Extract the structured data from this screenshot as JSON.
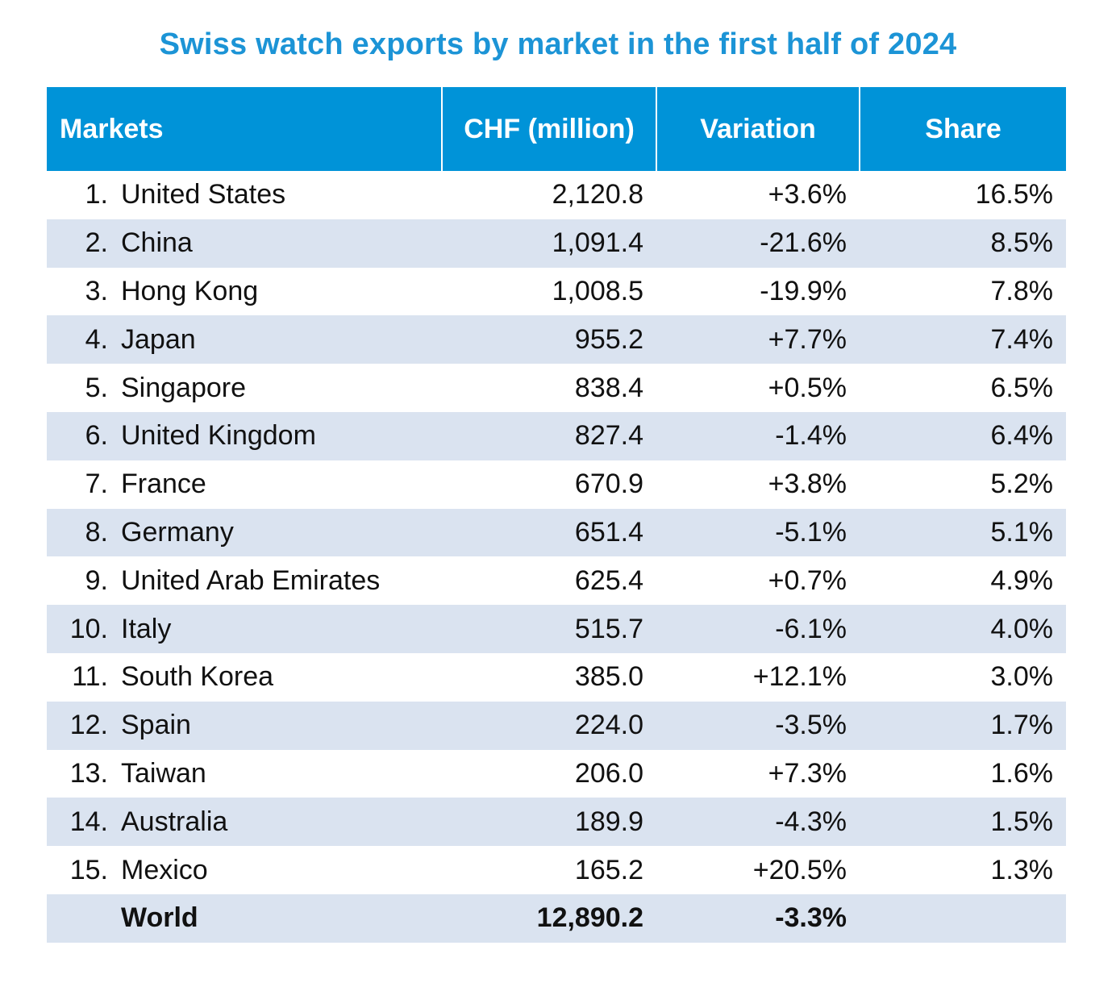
{
  "chart_data": {
    "type": "table",
    "title": "Swiss watch exports by market in the first half of 2024",
    "headers": {
      "markets": "Markets",
      "chf": "CHF (million)",
      "variation": "Variation",
      "share": "Share"
    },
    "rows": [
      {
        "rank": "1.",
        "market": "United States",
        "chf": "2,120.8",
        "variation": "+3.6%",
        "share": "16.5%"
      },
      {
        "rank": "2.",
        "market": "China",
        "chf": "1,091.4",
        "variation": "-21.6%",
        "share": "8.5%"
      },
      {
        "rank": "3.",
        "market": "Hong Kong",
        "chf": "1,008.5",
        "variation": "-19.9%",
        "share": "7.8%"
      },
      {
        "rank": "4.",
        "market": "Japan",
        "chf": "955.2",
        "variation": "+7.7%",
        "share": "7.4%"
      },
      {
        "rank": "5.",
        "market": "Singapore",
        "chf": "838.4",
        "variation": "+0.5%",
        "share": "6.5%"
      },
      {
        "rank": "6.",
        "market": "United Kingdom",
        "chf": "827.4",
        "variation": "-1.4%",
        "share": "6.4%"
      },
      {
        "rank": "7.",
        "market": "France",
        "chf": "670.9",
        "variation": "+3.8%",
        "share": "5.2%"
      },
      {
        "rank": "8.",
        "market": "Germany",
        "chf": "651.4",
        "variation": "-5.1%",
        "share": "5.1%"
      },
      {
        "rank": "9.",
        "market": "United Arab Emirates",
        "chf": "625.4",
        "variation": "+0.7%",
        "share": "4.9%"
      },
      {
        "rank": "10.",
        "market": "Italy",
        "chf": "515.7",
        "variation": "-6.1%",
        "share": "4.0%"
      },
      {
        "rank": "11.",
        "market": "South Korea",
        "chf": "385.0",
        "variation": "+12.1%",
        "share": "3.0%"
      },
      {
        "rank": "12.",
        "market": "Spain",
        "chf": "224.0",
        "variation": "-3.5%",
        "share": "1.7%"
      },
      {
        "rank": "13.",
        "market": "Taiwan",
        "chf": "206.0",
        "variation": "+7.3%",
        "share": "1.6%"
      },
      {
        "rank": "14.",
        "market": "Australia",
        "chf": "189.9",
        "variation": "-4.3%",
        "share": "1.5%"
      },
      {
        "rank": "15.",
        "market": "Mexico",
        "chf": "165.2",
        "variation": "+20.5%",
        "share": "1.3%"
      }
    ],
    "total": {
      "market": "World",
      "chf": "12,890.2",
      "variation": "-3.3%",
      "share": ""
    }
  },
  "colors": {
    "title": "#1c94d6",
    "header_bg": "#0093d8",
    "header_text": "#ffffff",
    "band": "#dae3f0"
  }
}
